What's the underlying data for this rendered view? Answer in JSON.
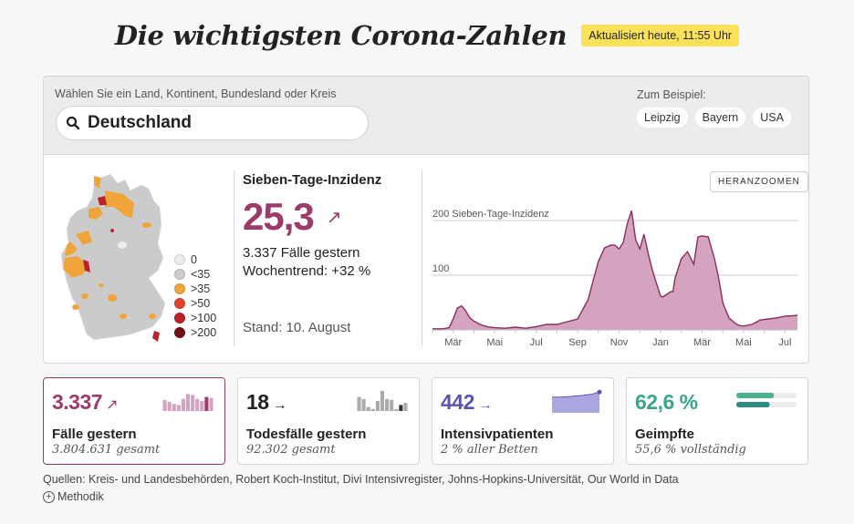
{
  "header": {
    "title": "Die wichtigsten Corona-Zahlen",
    "updated": "Aktualisiert heute, 11:55 Uhr"
  },
  "search": {
    "label": "Wählen Sie ein Land, Kontinent, Bundesland oder Kreis",
    "value": "Deutschland",
    "icon": "search-icon",
    "examples_label": "Zum Beispiel:",
    "examples": [
      "Leipzig",
      "Bayern",
      "USA"
    ]
  },
  "map": {
    "legend": [
      {
        "label": "0",
        "color": "#ececec"
      },
      {
        "label": "<35",
        "color": "#cccccc"
      },
      {
        "label": ">35",
        "color": "#f0a53c"
      },
      {
        "label": ">50",
        "color": "#e0452e"
      },
      {
        "label": ">100",
        "color": "#b9232a"
      },
      {
        "label": ">200",
        "color": "#6e1116"
      }
    ]
  },
  "incidence": {
    "title": "Sieben-Tage-Inzidenz",
    "value": "25,3",
    "trend_icon": "arrow-up-right-icon",
    "cases_line": "3.337 Fälle gestern",
    "weekly_trend": "Wochentrend: +32 %",
    "stand": "Stand: 10. August",
    "accent": "#9c3a6a"
  },
  "zoom_button": "HERANZOOMEN",
  "chart_data": {
    "type": "area",
    "title": "",
    "ylabel": "Sieben-Tage-Inzidenz",
    "y_ticks": [
      {
        "value": 100,
        "label": "100"
      },
      {
        "value": 200,
        "label": "200 Sieben-Tage-Inzidenz"
      }
    ],
    "ylim": [
      0,
      230
    ],
    "x_ticks": [
      "Mär",
      "Mai",
      "Jul",
      "Sep",
      "Nov",
      "Jan",
      "Mär",
      "Mai",
      "Jul"
    ],
    "x_tick_months": [
      1,
      3,
      5,
      7,
      9,
      11,
      13,
      15,
      17
    ],
    "grid": true,
    "fill": "#d4a3c0",
    "stroke": "#8a2e5c",
    "x_month_index": [
      0,
      0.5,
      0.8,
      1.0,
      1.2,
      1.4,
      1.6,
      1.8,
      2.0,
      2.3,
      2.6,
      3.0,
      3.5,
      4.0,
      4.5,
      5.0,
      5.5,
      6.0,
      6.5,
      7.0,
      7.5,
      8.0,
      8.3,
      8.6,
      8.8,
      9.0,
      9.2,
      9.4,
      9.6,
      9.8,
      10.0,
      10.2,
      10.4,
      10.6,
      10.8,
      11.0,
      11.1,
      11.3,
      11.5,
      11.6,
      11.7,
      12.0,
      12.3,
      12.6,
      12.8,
      13.0,
      13.3,
      13.6,
      13.8,
      14.0,
      14.1,
      14.3,
      14.6,
      14.8,
      15.0,
      15.4,
      15.6,
      15.8,
      16.2,
      16.6,
      17.0,
      17.4,
      17.6
    ],
    "values": [
      2,
      2,
      4,
      20,
      40,
      44,
      35,
      22,
      16,
      10,
      6,
      4,
      3,
      5,
      3,
      6,
      10,
      10,
      15,
      20,
      55,
      125,
      150,
      155,
      155,
      148,
      160,
      195,
      218,
      165,
      148,
      175,
      140,
      110,
      85,
      62,
      60,
      65,
      70,
      70,
      95,
      130,
      143,
      120,
      170,
      172,
      170,
      130,
      95,
      50,
      40,
      22,
      12,
      8,
      7,
      10,
      14,
      18,
      20,
      22,
      25,
      26,
      27
    ]
  },
  "cards": [
    {
      "value": "3.337",
      "arrow": "↗",
      "label": "Fälle gestern",
      "sub": "3.804.631 gesamt",
      "color": "#9c3a6a",
      "active": true,
      "spark": [
        0.55,
        0.45,
        0.35,
        0.3,
        0.6,
        0.85,
        0.8,
        0.6,
        0.5,
        0.7,
        0.65
      ]
    },
    {
      "value": "18",
      "arrow": "→",
      "label": "Todesfälle gestern",
      "sub": "92.302 gesamt",
      "color": "#222222",
      "active": false,
      "spark": [
        0.7,
        0.6,
        0.2,
        0.1,
        0.5,
        1.0,
        0.6,
        0.55,
        0.1,
        0.3,
        0.4
      ]
    },
    {
      "value": "442",
      "arrow": "→",
      "label": "Intensivpatienten",
      "sub": "2 % aller Betten",
      "color": "#5a55b5",
      "active": false,
      "spark": [
        0.72,
        0.72,
        0.74,
        0.77,
        0.8,
        0.85,
        0.95
      ]
    },
    {
      "value": "62,6 %",
      "arrow": "",
      "label": "Geimpfte",
      "sub": "55,6 % vollständig",
      "color": "#3aa58a",
      "active": false,
      "bars": [
        {
          "value": 0.626,
          "color": "#4bb08f"
        },
        {
          "value": 0.556,
          "color": "#2f8a86"
        }
      ]
    }
  ],
  "footer": {
    "sources": "Quellen: Kreis- und Landesbehörden, Robert Koch-Institut, Divi Intensivregister, Johns-Hopkins-Universität, Our World in Data",
    "methodik": "Methodik"
  }
}
